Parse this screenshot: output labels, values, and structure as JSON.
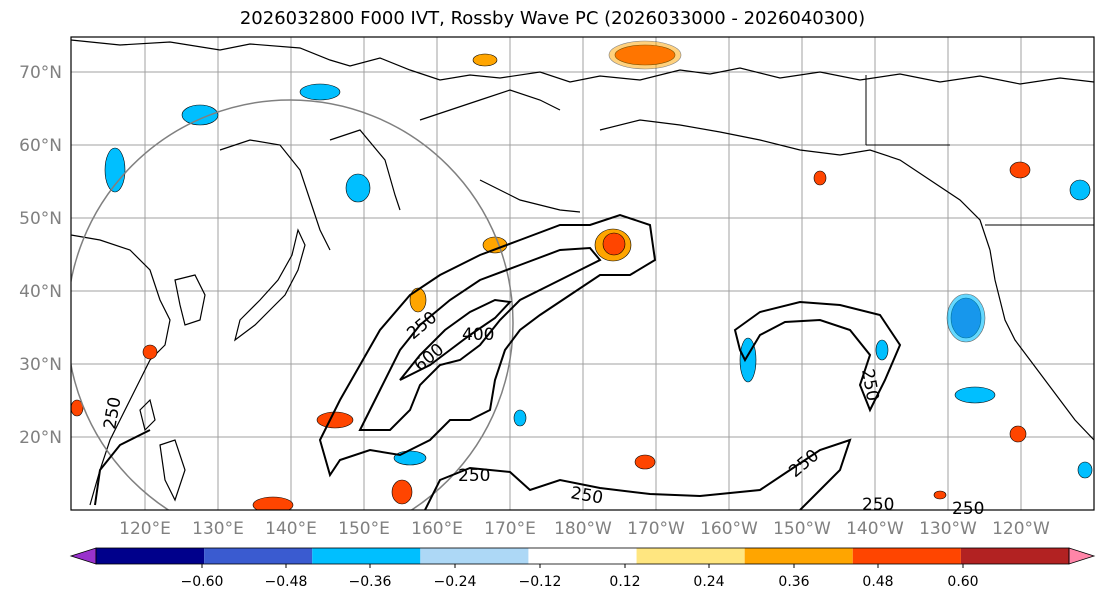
{
  "title": "2026032800 F000 IVT, Rossby Wave PC (2026033000 - 2026040300)",
  "lat_labels": [
    "70°N",
    "60°N",
    "50°N",
    "40°N",
    "30°N",
    "20°N"
  ],
  "lon_labels": [
    "120°E",
    "130°E",
    "140°E",
    "150°E",
    "160°E",
    "170°E",
    "180°W",
    "170°W",
    "160°W",
    "150°W",
    "140°W",
    "130°W",
    "120°W"
  ],
  "contour_labels": {
    "c250_a": "250",
    "c400": "400",
    "c600": "600",
    "c250_b": "250",
    "c250_c": "250",
    "c250_d": "250",
    "c250_e": "250",
    "c250_f": "250",
    "c250_g": "250",
    "c250_h": "250"
  },
  "colorbar": {
    "colors": [
      "#9932CC",
      "#00008B",
      "#3A5BD0",
      "#00BFFF",
      "#ADD8F6",
      "#FFFFFF",
      "#FFE680",
      "#FFA500",
      "#FF4500",
      "#B22222",
      "#FF85A8"
    ],
    "ticks": [
      "−0.60",
      "−0.48",
      "−0.36",
      "−0.24",
      "−0.12",
      "0.12",
      "0.24",
      "0.36",
      "0.48",
      "0.60"
    ]
  }
}
